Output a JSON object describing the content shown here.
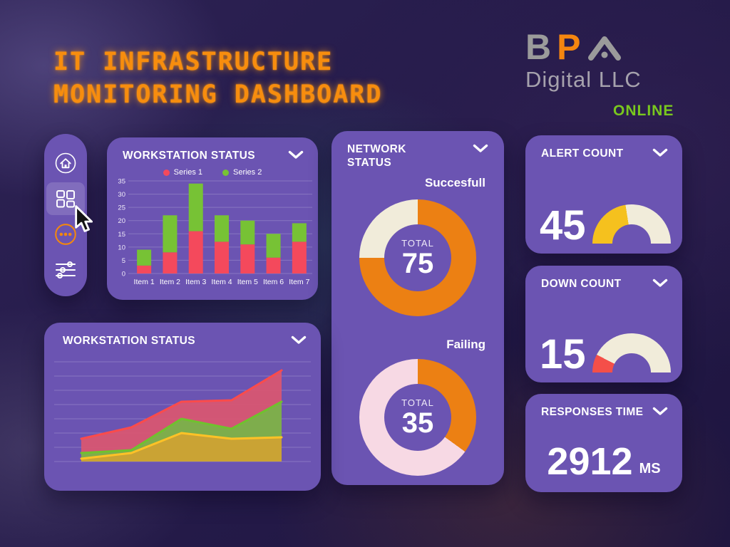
{
  "page": {
    "title": "IT INFRASTRUCTURE\nMONITORING DASHBOARD"
  },
  "logo": {
    "letter_b": "B",
    "letter_p": "P",
    "company": "Digital LLC",
    "status": "ONLINE",
    "gray": "#9b9b9b",
    "orange": "#f5860f",
    "status_color": "#79c81e"
  },
  "sidebar": {
    "items": [
      {
        "icon": "home-icon",
        "active": false
      },
      {
        "icon": "dashboard-grid-icon",
        "active": true
      },
      {
        "icon": "ellipsis-icon",
        "active": false
      },
      {
        "icon": "sliders-icon",
        "active": false
      }
    ]
  },
  "cards": {
    "card_color": "#6b54b2",
    "workstation_bar": {
      "title": "WORKSTATION STATUS",
      "chart_data": {
        "type": "bar",
        "stacked": true,
        "categories": [
          "Item 1",
          "Item 2",
          "Item 3",
          "Item 4",
          "Item 5",
          "Item 6",
          "Item 7"
        ],
        "series": [
          {
            "name": "Series 1",
            "color": "#f4495c",
            "values": [
              3,
              8,
              16,
              12,
              11,
              6,
              12
            ]
          },
          {
            "name": "Series 2",
            "color": "#77c235",
            "values": [
              6,
              14,
              18,
              10,
              9,
              9,
              7
            ]
          }
        ],
        "ylim": [
          0,
          35
        ],
        "yticks": [
          0,
          5,
          10,
          15,
          20,
          25,
          30,
          35
        ],
        "grid": true,
        "legend_position": "top"
      }
    },
    "workstation_area": {
      "title": "WORKSTATION STATUS",
      "chart_data": {
        "type": "area",
        "stacked": true,
        "x": [
          1,
          2,
          3,
          4,
          5
        ],
        "series": [
          {
            "name": "bottom-yellow",
            "fill": "#cfa233",
            "stroke": "#ffc226",
            "values": [
              1,
              3,
              10,
              8,
              8.5
            ]
          },
          {
            "name": "middle-green",
            "fill": "#79b24a",
            "stroke": "#6fc22e",
            "values": [
              2,
              1,
              5,
              3.5,
              12.5
            ]
          },
          {
            "name": "top-red",
            "fill": "#d85672",
            "stroke": "#fb4b4b",
            "values": [
              5,
              8,
              6,
              10,
              11
            ]
          }
        ],
        "ylim": [
          0,
          35
        ],
        "grid": true
      }
    },
    "network": {
      "title": "NETWORK STATUS",
      "sections": [
        {
          "label": "Succesfull",
          "center_label": "TOTAL",
          "value": 75,
          "pct": 75,
          "ring_color": "#ec8013",
          "rest_color": "#f1ecda"
        },
        {
          "label": "Failing",
          "center_label": "TOTAL",
          "value": 35,
          "pct": 35,
          "ring_color": "#ec8013",
          "rest_color": "#f7d9e4"
        }
      ]
    },
    "alert": {
      "title": "ALERT COUNT",
      "value": 45,
      "gauge_pct": 45,
      "gauge_color": "#f5c11e",
      "track_color": "#f1ecda"
    },
    "down": {
      "title": "DOWN COUNT",
      "value": 15,
      "gauge_pct": 15,
      "gauge_color": "#f44f49",
      "track_color": "#f1ecda"
    },
    "responses": {
      "title": "RESPONSES TIME",
      "value": 2912,
      "unit": "MS"
    }
  }
}
